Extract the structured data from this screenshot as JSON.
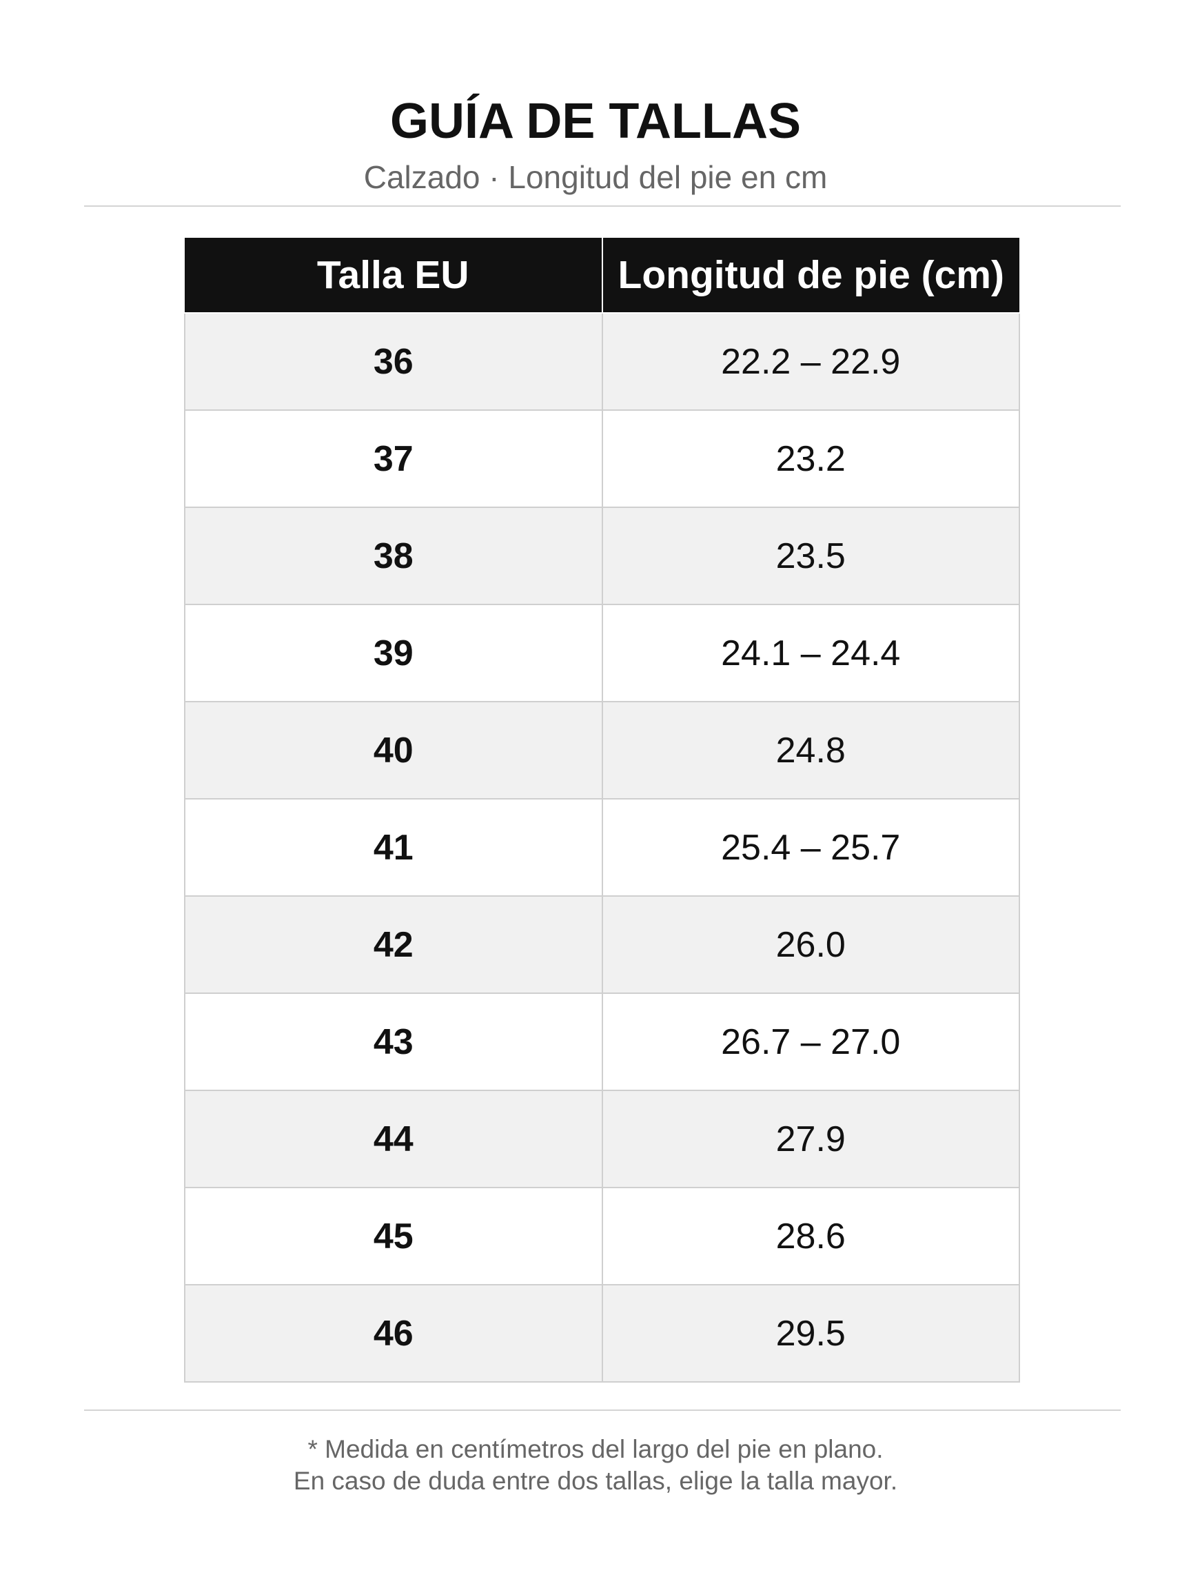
{
  "header": {
    "title": "GUÍA DE TALLAS",
    "subtitle": "Calzado · Longitud del pie en cm"
  },
  "table": {
    "columns": [
      "Talla EU",
      "Longitud de pie (cm)"
    ],
    "rows": [
      [
        "36",
        "22.2 – 22.9"
      ],
      [
        "37",
        "23.2"
      ],
      [
        "38",
        "23.5"
      ],
      [
        "39",
        "24.1 – 24.4"
      ],
      [
        "40",
        "24.8"
      ],
      [
        "41",
        "25.4 – 25.7"
      ],
      [
        "42",
        "26.0"
      ],
      [
        "43",
        "26.7 – 27.0"
      ],
      [
        "44",
        "27.9"
      ],
      [
        "45",
        "28.6"
      ],
      [
        "46",
        "29.5"
      ]
    ]
  },
  "footer": {
    "notes": [
      "* Medida en centímetros del largo del pie en plano.",
      "En caso de duda entre dos tallas, elige la talla mayor."
    ]
  }
}
